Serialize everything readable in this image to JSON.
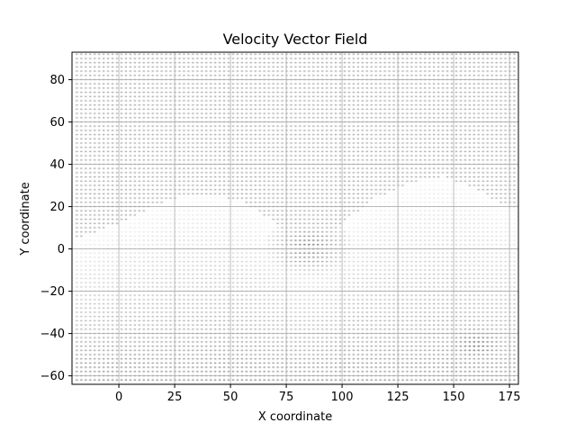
{
  "chart_data": {
    "type": "scatter",
    "title": "Velocity Vector Field",
    "xlabel": "X coordinate",
    "ylabel": "Y coordinate",
    "xlim": [
      -21,
      179
    ],
    "ylim": [
      -64,
      93
    ],
    "xticks": [
      0,
      25,
      50,
      75,
      100,
      125,
      150,
      175
    ],
    "yticks": [
      -60,
      -40,
      -20,
      0,
      20,
      40,
      60,
      80
    ],
    "grid": true,
    "legend": "none",
    "field": {
      "grid_x_range": [
        -19,
        177
      ],
      "grid_y_range": [
        -62,
        92
      ],
      "grid_spacing": 1,
      "light_band_upper_profile": [
        {
          "x": -19,
          "y": 5
        },
        {
          "x": 0,
          "y": 12
        },
        {
          "x": 15,
          "y": 20
        },
        {
          "x": 30,
          "y": 25
        },
        {
          "x": 42,
          "y": 26
        },
        {
          "x": 55,
          "y": 22
        },
        {
          "x": 70,
          "y": 12
        },
        {
          "x": 80,
          "y": 2
        },
        {
          "x": 88,
          "y": 0
        },
        {
          "x": 100,
          "y": 12
        },
        {
          "x": 115,
          "y": 24
        },
        {
          "x": 130,
          "y": 31
        },
        {
          "x": 145,
          "y": 34
        },
        {
          "x": 160,
          "y": 28
        },
        {
          "x": 177,
          "y": 18
        }
      ],
      "dark_regions": [
        {
          "x": 85,
          "y": 1
        },
        {
          "x": 160,
          "y": -45
        }
      ]
    },
    "colors": {
      "arrow": "#000000",
      "background_field": "#7a7a7a",
      "light_band": "#f4f4f4",
      "grid": "#b0b0b0"
    }
  }
}
